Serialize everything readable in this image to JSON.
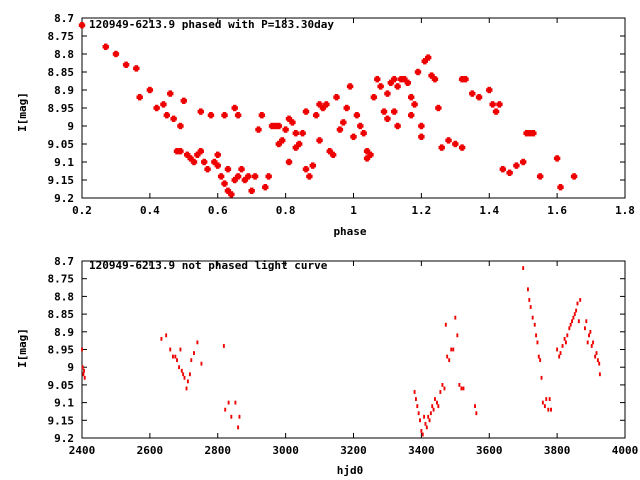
{
  "chart_data": [
    {
      "type": "scatter",
      "title": "120949-6213.9 phased with P=183.30day",
      "xlabel": "phase",
      "ylabel": "I[mag]",
      "xlim": [
        0.2,
        1.8
      ],
      "ylim": [
        9.2,
        8.7
      ],
      "y_inverted": true,
      "grid": false,
      "marker_color": "#ee0000",
      "x_ticks": [
        "0.2",
        "0.4",
        "0.6",
        "0.8",
        "1",
        "1.2",
        "1.4",
        "1.6",
        "1.8"
      ],
      "y_ticks": [
        "8.7",
        "8.75",
        "8.8",
        "8.85",
        "8.9",
        "8.95",
        "9",
        "9.05",
        "9.1",
        "9.15",
        "9.2"
      ],
      "points": [
        [
          0.2,
          8.72
        ],
        [
          0.27,
          8.78
        ],
        [
          0.3,
          8.8
        ],
        [
          0.33,
          8.83
        ],
        [
          0.36,
          8.84
        ],
        [
          0.37,
          8.92
        ],
        [
          0.4,
          8.9
        ],
        [
          0.42,
          8.95
        ],
        [
          0.44,
          8.94
        ],
        [
          0.45,
          8.97
        ],
        [
          0.46,
          8.91
        ],
        [
          0.47,
          8.98
        ],
        [
          0.48,
          9.07
        ],
        [
          0.49,
          9.07
        ],
        [
          0.49,
          9.0
        ],
        [
          0.5,
          8.93
        ],
        [
          0.51,
          9.08
        ],
        [
          0.52,
          9.09
        ],
        [
          0.53,
          9.1
        ],
        [
          0.54,
          9.08
        ],
        [
          0.55,
          8.96
        ],
        [
          0.55,
          9.07
        ],
        [
          0.56,
          9.1
        ],
        [
          0.57,
          9.12
        ],
        [
          0.58,
          8.97
        ],
        [
          0.59,
          9.1
        ],
        [
          0.6,
          9.11
        ],
        [
          0.6,
          9.08
        ],
        [
          0.61,
          9.14
        ],
        [
          0.62,
          8.97
        ],
        [
          0.62,
          9.16
        ],
        [
          0.63,
          9.12
        ],
        [
          0.63,
          9.18
        ],
        [
          0.64,
          9.19
        ],
        [
          0.65,
          9.15
        ],
        [
          0.65,
          8.95
        ],
        [
          0.66,
          8.97
        ],
        [
          0.66,
          9.14
        ],
        [
          0.67,
          9.12
        ],
        [
          0.68,
          9.15
        ],
        [
          0.69,
          9.14
        ],
        [
          0.7,
          9.18
        ],
        [
          0.71,
          9.14
        ],
        [
          0.72,
          9.01
        ],
        [
          0.73,
          8.97
        ],
        [
          0.74,
          9.17
        ],
        [
          0.75,
          9.14
        ],
        [
          0.76,
          9.0
        ],
        [
          0.77,
          9.0
        ],
        [
          0.78,
          9.05
        ],
        [
          0.78,
          9.0
        ],
        [
          0.79,
          9.04
        ],
        [
          0.8,
          9.01
        ],
        [
          0.81,
          8.98
        ],
        [
          0.81,
          9.1
        ],
        [
          0.82,
          8.99
        ],
        [
          0.83,
          9.06
        ],
        [
          0.83,
          9.02
        ],
        [
          0.84,
          9.05
        ],
        [
          0.85,
          9.02
        ],
        [
          0.86,
          9.12
        ],
        [
          0.86,
          8.96
        ],
        [
          0.87,
          9.14
        ],
        [
          0.88,
          9.11
        ],
        [
          0.89,
          8.97
        ],
        [
          0.9,
          8.94
        ],
        [
          0.9,
          9.04
        ],
        [
          0.91,
          8.95
        ],
        [
          0.92,
          8.94
        ],
        [
          0.93,
          9.07
        ],
        [
          0.94,
          9.08
        ],
        [
          0.95,
          8.92
        ],
        [
          0.96,
          9.01
        ],
        [
          0.97,
          8.99
        ],
        [
          0.98,
          8.95
        ],
        [
          0.99,
          8.89
        ],
        [
          1.0,
          9.03
        ],
        [
          1.01,
          8.97
        ],
        [
          1.02,
          9.0
        ],
        [
          1.03,
          9.02
        ],
        [
          1.04,
          9.09
        ],
        [
          1.04,
          9.07
        ],
        [
          1.05,
          9.08
        ],
        [
          1.06,
          8.92
        ],
        [
          1.07,
          8.87
        ],
        [
          1.08,
          8.89
        ],
        [
          1.09,
          8.96
        ],
        [
          1.1,
          8.98
        ],
        [
          1.1,
          8.91
        ],
        [
          1.11,
          8.88
        ],
        [
          1.12,
          8.87
        ],
        [
          1.12,
          8.96
        ],
        [
          1.13,
          9.0
        ],
        [
          1.13,
          8.89
        ],
        [
          1.14,
          8.87
        ],
        [
          1.15,
          8.87
        ],
        [
          1.16,
          8.88
        ],
        [
          1.17,
          8.92
        ],
        [
          1.17,
          8.97
        ],
        [
          1.18,
          8.94
        ],
        [
          1.19,
          8.85
        ],
        [
          1.2,
          9.0
        ],
        [
          1.2,
          9.03
        ],
        [
          1.21,
          8.82
        ],
        [
          1.22,
          8.81
        ],
        [
          1.23,
          8.86
        ],
        [
          1.24,
          8.87
        ],
        [
          1.25,
          8.95
        ],
        [
          1.26,
          9.06
        ],
        [
          1.28,
          9.04
        ],
        [
          1.3,
          9.05
        ],
        [
          1.32,
          9.06
        ],
        [
          1.32,
          8.87
        ],
        [
          1.33,
          8.87
        ],
        [
          1.35,
          8.91
        ],
        [
          1.37,
          8.92
        ],
        [
          1.4,
          8.9
        ],
        [
          1.41,
          8.94
        ],
        [
          1.42,
          8.96
        ],
        [
          1.43,
          8.94
        ],
        [
          1.44,
          9.12
        ],
        [
          1.46,
          9.13
        ],
        [
          1.48,
          9.11
        ],
        [
          1.5,
          9.1
        ],
        [
          1.51,
          9.02
        ],
        [
          1.52,
          9.02
        ],
        [
          1.53,
          9.02
        ],
        [
          1.55,
          9.14
        ],
        [
          1.6,
          9.09
        ],
        [
          1.61,
          9.17
        ],
        [
          1.65,
          9.14
        ]
      ]
    },
    {
      "type": "scatter",
      "title": "120949-6213.9 not phased light curve",
      "xlabel": "hjd0",
      "ylabel": "I[mag]",
      "xlim": [
        2400,
        4000
      ],
      "ylim": [
        9.2,
        8.7
      ],
      "y_inverted": true,
      "grid": false,
      "marker_color": "#ee0000",
      "x_ticks": [
        "2400",
        "2600",
        "2800",
        "3000",
        "3200",
        "3400",
        "3600",
        "3800",
        "4000"
      ],
      "y_ticks": [
        "8.7",
        "8.75",
        "8.8",
        "8.85",
        "8.9",
        "8.95",
        "9",
        "9.05",
        "9.1",
        "9.15",
        "9.2"
      ],
      "points": [
        [
          2400,
          8.95
        ],
        [
          2402,
          9.0
        ],
        [
          2404,
          9.02
        ],
        [
          2406,
          9.01
        ],
        [
          2408,
          9.03
        ],
        [
          2634,
          8.92
        ],
        [
          2648,
          8.91
        ],
        [
          2660,
          8.95
        ],
        [
          2668,
          8.97
        ],
        [
          2675,
          8.97
        ],
        [
          2680,
          8.98
        ],
        [
          2686,
          9.0
        ],
        [
          2690,
          8.95
        ],
        [
          2694,
          9.01
        ],
        [
          2698,
          9.02
        ],
        [
          2702,
          9.03
        ],
        [
          2708,
          9.06
        ],
        [
          2712,
          9.04
        ],
        [
          2718,
          9.02
        ],
        [
          2722,
          8.98
        ],
        [
          2730,
          8.96
        ],
        [
          2740,
          8.93
        ],
        [
          2752,
          8.99
        ],
        [
          2818,
          8.94
        ],
        [
          2822,
          9.12
        ],
        [
          2832,
          9.1
        ],
        [
          2840,
          9.14
        ],
        [
          2852,
          9.1
        ],
        [
          2860,
          9.17
        ],
        [
          2864,
          9.14
        ],
        [
          3380,
          9.07
        ],
        [
          3384,
          9.09
        ],
        [
          3388,
          9.11
        ],
        [
          3392,
          9.13
        ],
        [
          3396,
          9.15
        ],
        [
          3400,
          9.18
        ],
        [
          3404,
          9.19
        ],
        [
          3408,
          9.14
        ],
        [
          3412,
          9.16
        ],
        [
          3416,
          9.17
        ],
        [
          3420,
          9.14
        ],
        [
          3424,
          9.15
        ],
        [
          3428,
          9.13
        ],
        [
          3432,
          9.11
        ],
        [
          3436,
          9.12
        ],
        [
          3440,
          9.09
        ],
        [
          3446,
          9.1
        ],
        [
          3450,
          9.11
        ],
        [
          3456,
          9.07
        ],
        [
          3462,
          9.05
        ],
        [
          3468,
          9.06
        ],
        [
          3472,
          8.88
        ],
        [
          3476,
          8.97
        ],
        [
          3482,
          8.98
        ],
        [
          3488,
          8.95
        ],
        [
          3494,
          8.95
        ],
        [
          3500,
          8.86
        ],
        [
          3506,
          8.91
        ],
        [
          3512,
          9.05
        ],
        [
          3518,
          9.06
        ],
        [
          3524,
          9.06
        ],
        [
          3558,
          9.11
        ],
        [
          3562,
          9.13
        ],
        [
          3700,
          8.72
        ],
        [
          3714,
          8.78
        ],
        [
          3718,
          8.81
        ],
        [
          3722,
          8.83
        ],
        [
          3728,
          8.86
        ],
        [
          3734,
          8.88
        ],
        [
          3738,
          8.91
        ],
        [
          3742,
          8.93
        ],
        [
          3746,
          8.97
        ],
        [
          3750,
          8.98
        ],
        [
          3754,
          9.03
        ],
        [
          3758,
          9.1
        ],
        [
          3764,
          9.11
        ],
        [
          3768,
          9.09
        ],
        [
          3774,
          9.12
        ],
        [
          3778,
          9.09
        ],
        [
          3782,
          9.12
        ],
        [
          3800,
          8.95
        ],
        [
          3806,
          8.97
        ],
        [
          3810,
          8.96
        ],
        [
          3816,
          8.94
        ],
        [
          3822,
          8.92
        ],
        [
          3826,
          8.93
        ],
        [
          3830,
          8.91
        ],
        [
          3836,
          8.89
        ],
        [
          3840,
          8.88
        ],
        [
          3844,
          8.87
        ],
        [
          3848,
          8.86
        ],
        [
          3852,
          8.85
        ],
        [
          3856,
          8.84
        ],
        [
          3860,
          8.82
        ],
        [
          3864,
          8.87
        ],
        [
          3868,
          8.81
        ],
        [
          3882,
          8.89
        ],
        [
          3886,
          8.87
        ],
        [
          3890,
          8.93
        ],
        [
          3894,
          8.91
        ],
        [
          3898,
          8.9
        ],
        [
          3902,
          8.94
        ],
        [
          3906,
          8.93
        ],
        [
          3912,
          8.97
        ],
        [
          3916,
          8.96
        ],
        [
          3920,
          8.98
        ],
        [
          3924,
          8.99
        ],
        [
          3926,
          9.02
        ]
      ]
    }
  ]
}
